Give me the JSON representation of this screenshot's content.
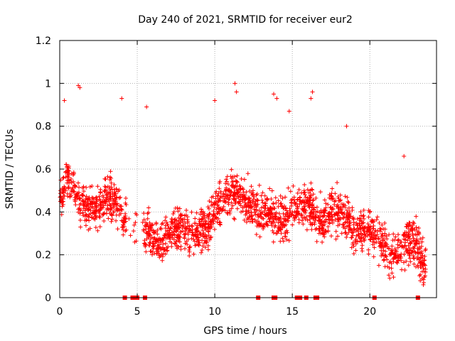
{
  "chart_data": {
    "type": "scatter",
    "title": "Day 240 of 2021, SRMTID for receiver eur2",
    "xlabel": "GPS time / hours",
    "ylabel": "SRMTID / TECUs",
    "xlim": [
      0,
      24.3
    ],
    "ylim": [
      0,
      1.2
    ],
    "grid": true,
    "x_ticks": [
      0,
      5,
      10,
      15,
      20
    ],
    "x_tick_labels": [
      "0",
      "5",
      "10",
      "15",
      "20"
    ],
    "y_ticks": [
      0,
      0.2,
      0.4,
      0.6,
      0.8,
      1.0,
      1.2
    ],
    "y_tick_labels": [
      "0",
      "0.2",
      "0.4",
      "0.6",
      "0.8",
      "1",
      "1.2"
    ],
    "series": [
      {
        "name": "SRMTID",
        "marker": "plus",
        "color": "#ff0000",
        "trend": [
          [
            0.0,
            0.45
          ],
          [
            0.5,
            0.58
          ],
          [
            1.0,
            0.5
          ],
          [
            1.5,
            0.42
          ],
          [
            2.0,
            0.4
          ],
          [
            2.5,
            0.42
          ],
          [
            3.0,
            0.48
          ],
          [
            3.5,
            0.45
          ],
          [
            4.0,
            0.4
          ],
          [
            4.3,
            0.35
          ],
          [
            5.5,
            0.32
          ],
          [
            6.0,
            0.28
          ],
          [
            6.5,
            0.25
          ],
          [
            7.0,
            0.3
          ],
          [
            7.5,
            0.32
          ],
          [
            8.0,
            0.32
          ],
          [
            8.5,
            0.3
          ],
          [
            9.0,
            0.3
          ],
          [
            9.5,
            0.33
          ],
          [
            10.0,
            0.4
          ],
          [
            10.5,
            0.45
          ],
          [
            11.0,
            0.48
          ],
          [
            11.5,
            0.5
          ],
          [
            12.0,
            0.45
          ],
          [
            12.5,
            0.42
          ],
          [
            13.0,
            0.38
          ],
          [
            13.5,
            0.4
          ],
          [
            14.0,
            0.36
          ],
          [
            14.5,
            0.36
          ],
          [
            15.0,
            0.42
          ],
          [
            15.5,
            0.4
          ],
          [
            16.0,
            0.45
          ],
          [
            16.5,
            0.38
          ],
          [
            17.0,
            0.36
          ],
          [
            17.5,
            0.4
          ],
          [
            18.0,
            0.4
          ],
          [
            18.5,
            0.36
          ],
          [
            19.0,
            0.32
          ],
          [
            19.5,
            0.3
          ],
          [
            20.0,
            0.32
          ],
          [
            20.5,
            0.28
          ],
          [
            21.0,
            0.22
          ],
          [
            21.5,
            0.2
          ],
          [
            22.0,
            0.22
          ],
          [
            22.5,
            0.28
          ],
          [
            23.0,
            0.25
          ],
          [
            23.5,
            0.15
          ]
        ],
        "highlights": [
          [
            1.2,
            0.99
          ],
          [
            1.3,
            0.98
          ],
          [
            4.0,
            0.93
          ],
          [
            5.6,
            0.89
          ],
          [
            10.0,
            0.92
          ],
          [
            11.3,
            1.0
          ],
          [
            11.4,
            0.96
          ],
          [
            13.8,
            0.95
          ],
          [
            14.0,
            0.93
          ],
          [
            16.3,
            0.96
          ],
          [
            16.2,
            0.93
          ],
          [
            14.8,
            0.87
          ],
          [
            18.5,
            0.8
          ],
          [
            22.2,
            0.66
          ],
          [
            0.3,
            0.92
          ]
        ],
        "zeros": [
          4.2,
          4.7,
          4.8,
          4.9,
          5.0,
          5.5,
          12.8,
          13.8,
          13.9,
          15.3,
          15.4,
          15.5,
          15.9,
          16.5,
          16.6,
          20.3,
          23.1
        ],
        "gaps": [
          [
            4.3,
            5.4
          ]
        ]
      }
    ]
  }
}
